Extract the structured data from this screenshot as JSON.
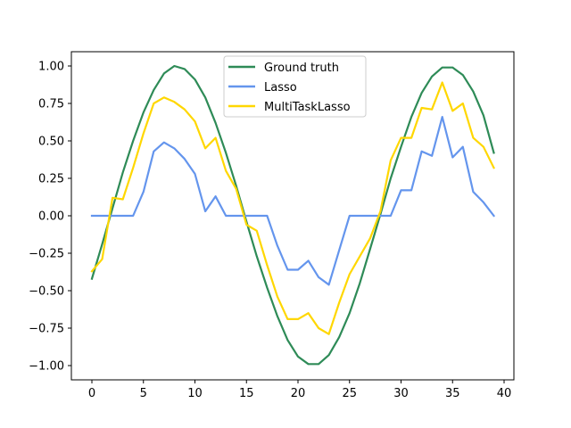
{
  "chart_data": {
    "type": "line",
    "title": "",
    "xlabel": "",
    "ylabel": "",
    "xlim": [
      -2,
      41
    ],
    "ylim": [
      -1.1,
      1.1
    ],
    "grid": false,
    "legend_position": "upper center",
    "x_ticks": [
      0,
      5,
      10,
      15,
      20,
      25,
      30,
      35,
      40
    ],
    "x_tick_labels": [
      "0",
      "5",
      "10",
      "15",
      "20",
      "25",
      "30",
      "35",
      "40"
    ],
    "y_ticks": [
      1.0,
      0.75,
      0.5,
      0.25,
      0.0,
      -0.25,
      -0.5,
      -0.75,
      -1.0
    ],
    "y_tick_labels": [
      "1.00",
      "0.75",
      "0.50",
      "0.25",
      "0.00",
      "−0.25",
      "−0.50",
      "−0.75",
      "−1.00"
    ],
    "x": [
      0,
      1,
      2,
      3,
      4,
      5,
      6,
      7,
      8,
      9,
      10,
      11,
      12,
      13,
      14,
      15,
      16,
      17,
      18,
      19,
      20,
      21,
      22,
      23,
      24,
      25,
      26,
      27,
      28,
      29,
      30,
      31,
      32,
      33,
      34,
      35,
      36,
      37,
      38,
      39
    ],
    "series": [
      {
        "name": "Ground truth",
        "color": "#2e8b57",
        "values": [
          -0.42,
          -0.19,
          0.05,
          0.29,
          0.5,
          0.69,
          0.84,
          0.95,
          1.0,
          0.98,
          0.91,
          0.79,
          0.62,
          0.42,
          0.2,
          -0.04,
          -0.27,
          -0.48,
          -0.67,
          -0.83,
          -0.94,
          -0.99,
          -0.99,
          -0.93,
          -0.81,
          -0.65,
          -0.45,
          -0.22,
          0.01,
          0.25,
          0.46,
          0.66,
          0.82,
          0.93,
          0.99,
          0.99,
          0.94,
          0.83,
          0.67,
          0.42
        ]
      },
      {
        "name": "Lasso",
        "color": "#6495ed",
        "values": [
          0,
          0,
          0,
          0,
          0,
          0.16,
          0.43,
          0.49,
          0.45,
          0.38,
          0.28,
          0.03,
          0.13,
          0,
          0,
          0,
          0,
          0,
          -0.2,
          -0.36,
          -0.36,
          -0.3,
          -0.41,
          -0.46,
          -0.23,
          0,
          0,
          0,
          0,
          0,
          0.17,
          0.17,
          0.43,
          0.4,
          0.66,
          0.39,
          0.46,
          0.16,
          0.09,
          0
        ]
      },
      {
        "name": "MultiTaskLasso",
        "color": "#ffd700",
        "values": [
          -0.37,
          -0.29,
          0.12,
          0.11,
          0.32,
          0.55,
          0.75,
          0.79,
          0.76,
          0.71,
          0.63,
          0.45,
          0.52,
          0.3,
          0.18,
          -0.06,
          -0.1,
          -0.33,
          -0.54,
          -0.69,
          -0.69,
          -0.65,
          -0.75,
          -0.79,
          -0.58,
          -0.39,
          -0.27,
          -0.15,
          0.03,
          0.37,
          0.52,
          0.52,
          0.72,
          0.71,
          0.89,
          0.7,
          0.75,
          0.52,
          0.46,
          0.32
        ]
      }
    ]
  }
}
